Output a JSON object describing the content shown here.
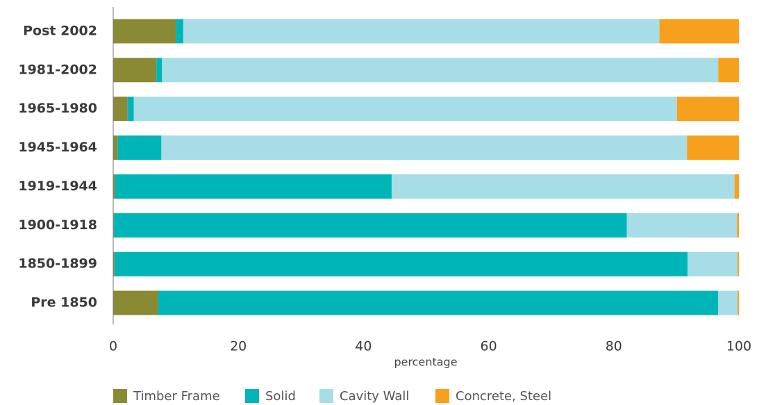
{
  "chart_data": {
    "type": "bar",
    "orientation": "horizontal",
    "stacked": true,
    "xlabel": "percentage",
    "categories": [
      "Post 2002",
      "1981-2002",
      "1965-1980",
      "1945-1964",
      "1919-1944",
      "1900-1918",
      "1850-1899",
      "Pre 1850"
    ],
    "series": [
      {
        "name": "Timber Frame",
        "color": "#8a8a35",
        "values": [
          10,
          6.9,
          2.3,
          0.7,
          0.3,
          0.1,
          0.2,
          7.2
        ]
      },
      {
        "name": "Solid",
        "color": "#00b5b8",
        "values": [
          1.2,
          0.9,
          1.0,
          7.0,
          44.2,
          82.0,
          91.6,
          89.5
        ]
      },
      {
        "name": "Cavity Wall",
        "color": "#a6dde6",
        "values": [
          76.1,
          88.9,
          86.8,
          84.0,
          54.8,
          17.6,
          8.0,
          3.1
        ]
      },
      {
        "name": "Concrete, Steel",
        "color": "#f7a01d",
        "values": [
          12.7,
          3.3,
          9.9,
          8.3,
          0.7,
          0.3,
          0.2,
          0.2
        ]
      }
    ],
    "xlim": [
      0,
      100
    ],
    "xticks": [
      0,
      20,
      40,
      60,
      80,
      100
    ],
    "grid": false,
    "legend": "bottom"
  }
}
